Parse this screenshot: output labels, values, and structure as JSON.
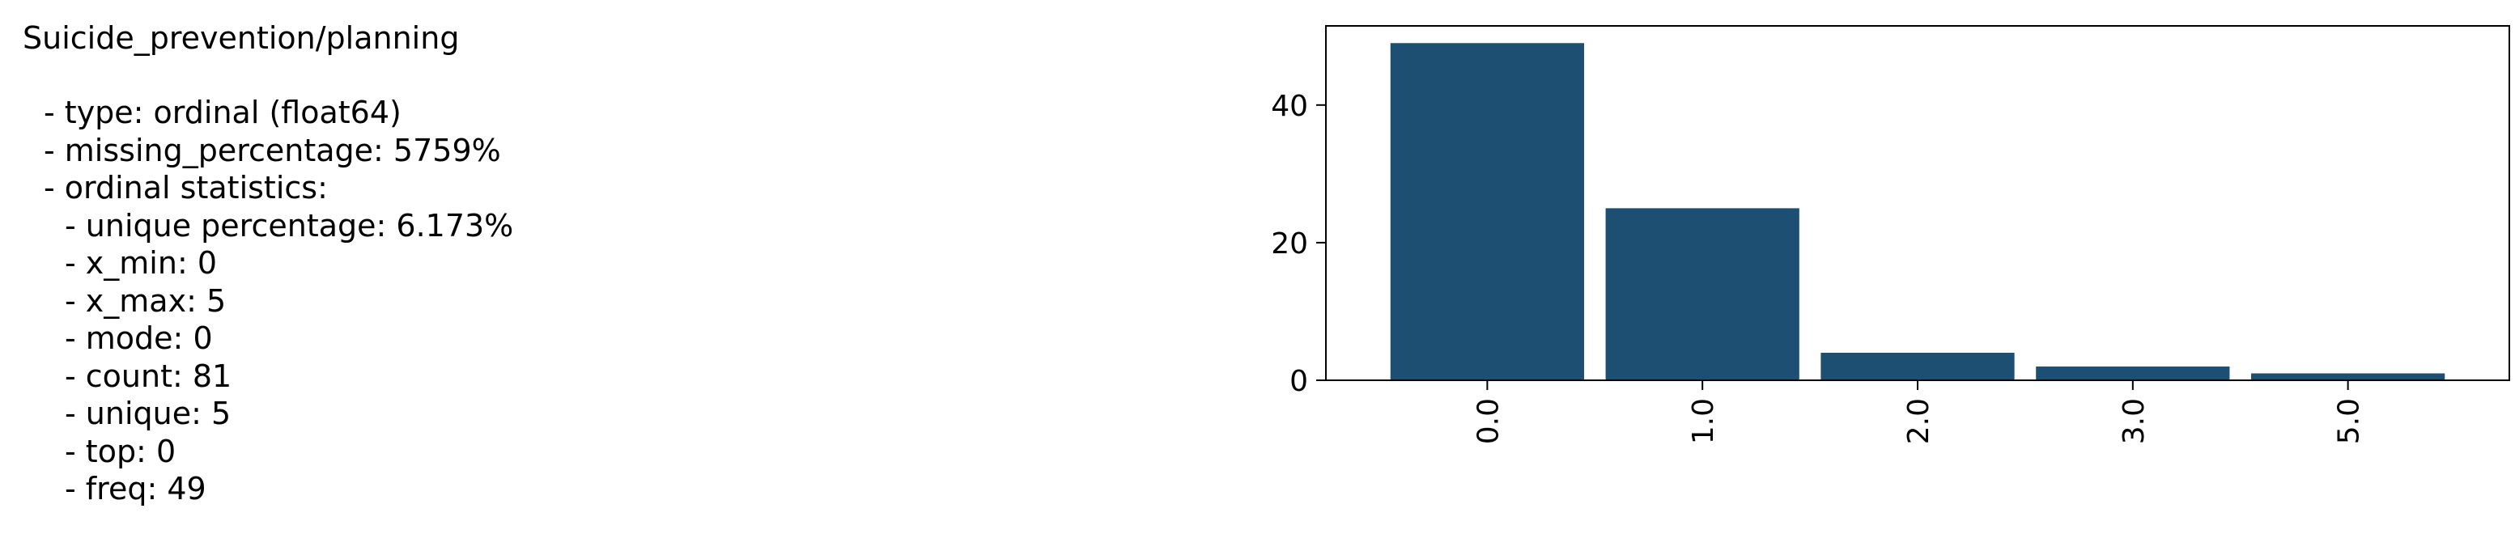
{
  "stats": {
    "title": "Suicide_prevention/planning",
    "lines": [
      {
        "text": "- type: ordinal (float64)",
        "indent": 1
      },
      {
        "text": "- missing_percentage: 5759%",
        "indent": 1
      },
      {
        "text": "- ordinal statistics:",
        "indent": 1
      },
      {
        "text": "- unique percentage: 6.173%",
        "indent": 2
      },
      {
        "text": "- x_min: 0",
        "indent": 2
      },
      {
        "text": "- x_max: 5",
        "indent": 2
      },
      {
        "text": "- mode: 0",
        "indent": 2
      },
      {
        "text": "- count: 81",
        "indent": 2
      },
      {
        "text": "- unique: 5",
        "indent": 2
      },
      {
        "text": "- top: 0",
        "indent": 2
      },
      {
        "text": "- freq: 49",
        "indent": 2
      }
    ]
  },
  "chart_data": {
    "type": "bar",
    "categories": [
      "0.0",
      "1.0",
      "2.0",
      "3.0",
      "5.0"
    ],
    "values": [
      49,
      25,
      4,
      2,
      1
    ],
    "title": "",
    "xlabel": "",
    "ylabel": "",
    "ylim": [
      0,
      51.5
    ],
    "yticks": [
      0,
      20,
      40
    ],
    "grid": false,
    "legend": "none",
    "bar_color": "#1c4f72"
  }
}
